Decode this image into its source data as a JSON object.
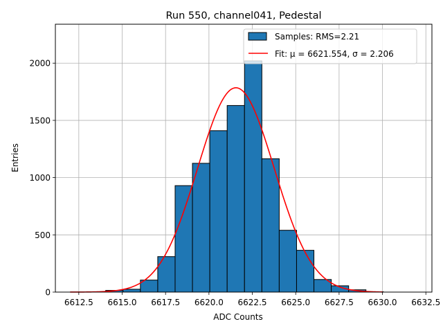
{
  "chart_data": {
    "type": "bar",
    "title": "Run 550, channel041, Pedestal",
    "xlabel": "ADC Counts",
    "ylabel": "Entries",
    "xlim": [
      6611.15,
      6632.85
    ],
    "ylim": [
      0,
      2340
    ],
    "grid": true,
    "legend_position": "top-right",
    "x_ticks": [
      6612.5,
      6615.0,
      6617.5,
      6620.0,
      6622.5,
      6625.0,
      6627.5,
      6630.0,
      6632.5
    ],
    "x_tick_labels": [
      "6612.5",
      "6615.0",
      "6617.5",
      "6620.0",
      "6622.5",
      "6625.0",
      "6627.5",
      "6630.0",
      "6632.5"
    ],
    "y_ticks": [
      0,
      500,
      1000,
      1500,
      2000
    ],
    "y_tick_labels": [
      "0",
      "500",
      "1000",
      "1500",
      "2000"
    ],
    "histogram": {
      "name": "Samples: RMS=2.21",
      "bin_edges": [
        6612.0,
        6613.05,
        6614.05,
        6615.05,
        6616.05,
        6617.05,
        6618.05,
        6619.05,
        6620.05,
        6621.05,
        6622.05,
        6623.05,
        6624.05,
        6625.05,
        6626.05,
        6627.05,
        6628.05,
        6629.05,
        6630.05,
        6631.05,
        6632.0
      ],
      "counts": [
        0,
        3,
        15,
        25,
        105,
        310,
        930,
        1125,
        1410,
        1630,
        2020,
        1165,
        540,
        365,
        110,
        55,
        20,
        3,
        0,
        0
      ],
      "color": "#1f77b4",
      "edgecolor": "#000000"
    },
    "fit": {
      "name": "Fit: μ = 6621.554, σ = 2.206",
      "mu": 6621.554,
      "sigma": 2.206,
      "amplitude": 1785,
      "x_range": [
        6612.0,
        6630.0
      ],
      "color": "#ff0000"
    }
  }
}
